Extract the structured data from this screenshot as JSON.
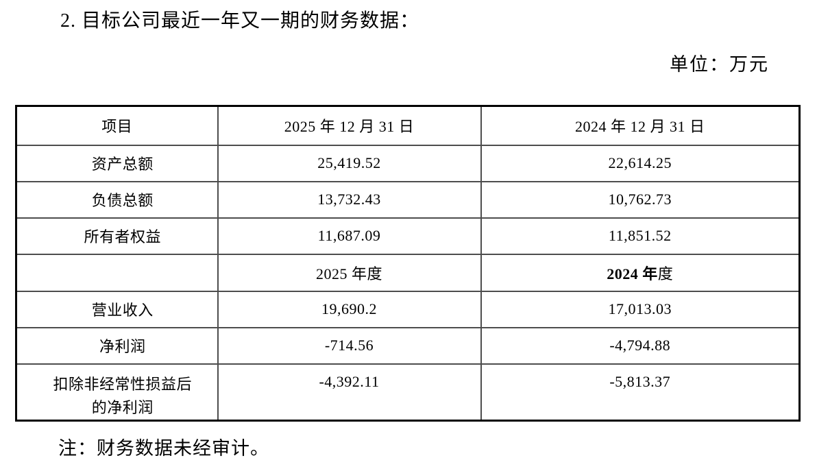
{
  "document": {
    "title": "2. 目标公司最近一年又一期的财务数据：",
    "unit_label": "单位：万元",
    "footnote": "注：财务数据未经审计。"
  },
  "table": {
    "columns": {
      "item": "项目",
      "date_2025": "2025 年 12 月 31 日",
      "date_2024": "2024 年 12 月 31 日"
    },
    "balance_rows": [
      {
        "label": "资产总额",
        "y2025": "25,419.52",
        "y2024": "22,614.25"
      },
      {
        "label": "负债总额",
        "y2025": "13,732.43",
        "y2024": "10,762.73"
      },
      {
        "label": "所有者权益",
        "y2025": "11,687.09",
        "y2024": "11,851.52"
      }
    ],
    "period_header": {
      "y2025": "2025 年度",
      "y2024_bold": "2024 年",
      "y2024_regular": "度"
    },
    "income_rows": [
      {
        "label": "营业收入",
        "y2025": "19,690.2",
        "y2024": "17,013.03"
      },
      {
        "label": "净利润",
        "y2025": "-714.56",
        "y2024": "-4,794.88"
      },
      {
        "label": "扣除非经常性损益后的净利润",
        "y2025": "-4,392.11",
        "y2024": "-5,813.37"
      }
    ]
  }
}
